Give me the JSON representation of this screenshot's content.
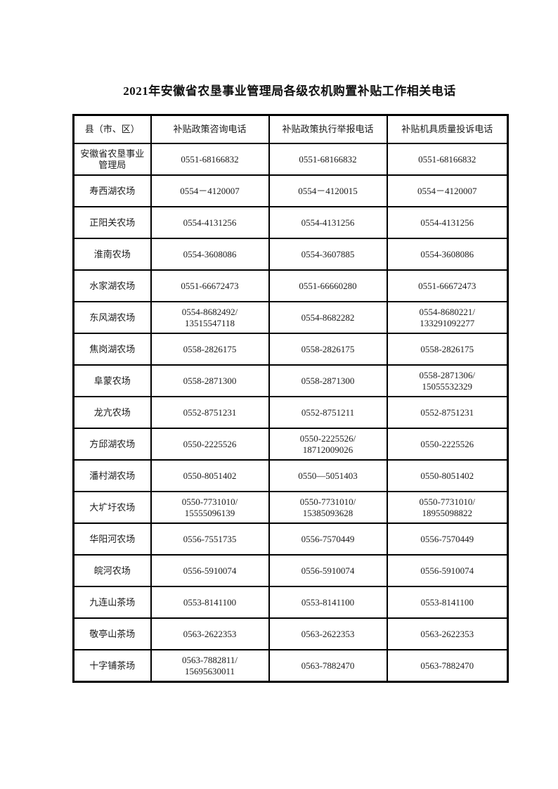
{
  "title": "2021年安徽省农垦事业管理局各级农机购置补贴工作相关电话",
  "table": {
    "headers": [
      "县（市、区）",
      "补贴政策咨询电话",
      "补贴政策执行举报电话",
      "补贴机具质量投诉电话"
    ],
    "rows": [
      {
        "name": "安徽省农垦事业\n管理局",
        "phones": [
          "0551-68166832",
          "0551-68166832",
          "0551-68166832"
        ]
      },
      {
        "name": "寿西湖农场",
        "phones": [
          "0554－4120007",
          "0554－4120015",
          "0554－4120007"
        ]
      },
      {
        "name": "正阳关农场",
        "phones": [
          "0554-4131256",
          "0554-4131256",
          "0554-4131256"
        ]
      },
      {
        "name": "淮南农场",
        "phones": [
          "0554-3608086",
          "0554-3607885",
          "0554-3608086"
        ]
      },
      {
        "name": "水家湖农场",
        "phones": [
          "0551-66672473",
          "0551-66660280",
          "0551-66672473"
        ]
      },
      {
        "name": "东风湖农场",
        "phones": [
          "0554-8682492/\n13515547118",
          "0554-8682282",
          "0554-8680221/\n133291092277"
        ]
      },
      {
        "name": "焦岗湖农场",
        "phones": [
          "0558-2826175",
          "0558-2826175",
          "0558-2826175"
        ]
      },
      {
        "name": "阜蒙农场",
        "phones": [
          "0558-2871300",
          "0558-2871300",
          "0558-2871306/\n15055532329"
        ]
      },
      {
        "name": "龙亢农场",
        "phones": [
          "0552-8751231",
          "0552-8751211",
          "0552-8751231"
        ]
      },
      {
        "name": "方邱湖农场",
        "phones": [
          "0550-2225526",
          "0550-2225526/\n18712009026",
          "0550-2225526"
        ]
      },
      {
        "name": "潘村湖农场",
        "phones": [
          "0550-8051402",
          "0550—5051403",
          "0550-8051402"
        ]
      },
      {
        "name": "大圹圩农场",
        "phones": [
          "0550-7731010/\n15555096139",
          "0550-7731010/\n15385093628",
          "0550-7731010/\n18955098822"
        ]
      },
      {
        "name": "华阳河农场",
        "phones": [
          "0556-7551735",
          "0556-7570449",
          "0556-7570449"
        ]
      },
      {
        "name": "皖河农场",
        "phones": [
          "0556-5910074",
          "0556-5910074",
          "0556-5910074"
        ]
      },
      {
        "name": "九连山茶场",
        "phones": [
          "0553-8141100",
          "0553-8141100",
          "0553-8141100"
        ]
      },
      {
        "name": "敬亭山茶场",
        "phones": [
          "0563-2622353",
          "0563-2622353",
          "0563-2622353"
        ]
      },
      {
        "name": "十字铺茶场",
        "phones": [
          "0563-7882811/\n15695630011",
          "0563-7882470",
          "0563-7882470"
        ]
      }
    ]
  }
}
